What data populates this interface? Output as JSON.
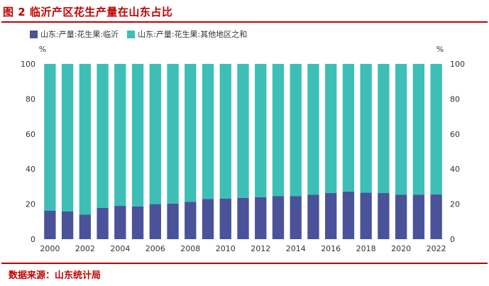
{
  "header": {
    "title": "图 2 临沂产区花生产量在山东占比"
  },
  "footer": {
    "source": "数据来源：山东统计局"
  },
  "colors": {
    "linyi": "#4a5299",
    "other": "#3dbfb6",
    "accent": "#c00000"
  },
  "chart_data": {
    "type": "bar",
    "stacked": true,
    "title": "临沂产区花生产量在山东占比",
    "xlabel": "",
    "ylabel_left": "%",
    "ylabel_right": "%",
    "ylim": [
      0,
      100
    ],
    "yticks": [
      0,
      20,
      40,
      60,
      80,
      100
    ],
    "categories": [
      "2000",
      "2001",
      "2002",
      "2003",
      "2004",
      "2005",
      "2006",
      "2007",
      "2008",
      "2009",
      "2010",
      "2011",
      "2012",
      "2013",
      "2014",
      "2015",
      "2016",
      "2017",
      "2018",
      "2019",
      "2020",
      "2021",
      "2022"
    ],
    "xtick_labels": [
      "2000",
      "2002",
      "2004",
      "2006",
      "2008",
      "2010",
      "2012",
      "2014",
      "2016",
      "2018",
      "2020",
      "2022"
    ],
    "series": [
      {
        "name": "山东:产量:花生果:临沂",
        "values": [
          16.2,
          15.8,
          14.0,
          17.8,
          19.0,
          18.7,
          20.0,
          20.3,
          21.3,
          23.0,
          23.2,
          23.6,
          24.0,
          24.5,
          24.5,
          25.3,
          26.3,
          27.2,
          26.5,
          26.3,
          25.3,
          25.3,
          25.6
        ]
      },
      {
        "name": "山东:产量:花生果:其他地区之和",
        "values": [
          83.8,
          84.2,
          86.0,
          82.2,
          81.0,
          81.3,
          80.0,
          79.7,
          78.7,
          77.0,
          76.8,
          76.4,
          76.0,
          75.5,
          75.5,
          74.7,
          73.7,
          72.8,
          73.5,
          73.7,
          74.7,
          74.7,
          74.4
        ]
      }
    ]
  }
}
